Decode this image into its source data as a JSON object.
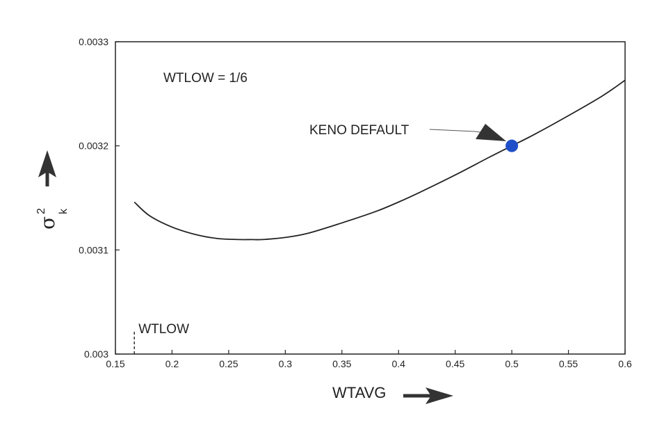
{
  "chart_data": {
    "type": "line",
    "xlabel": "WTAVG",
    "ylabel": {
      "symbol": "σ",
      "superscript": "2",
      "subscript": "k"
    },
    "xlim": [
      0.15,
      0.6
    ],
    "ylim": [
      0.003,
      0.0033
    ],
    "x_ticks": [
      0.15,
      0.2,
      0.25,
      0.3,
      0.35,
      0.4,
      0.45,
      0.5,
      0.55,
      0.6
    ],
    "x_tick_labels": [
      "0.15",
      "0.2",
      "0.25",
      "0.3",
      "0.35",
      "0.4",
      "0.45",
      "0.5",
      "0.55",
      "0.6"
    ],
    "y_ticks": [
      0.003,
      0.0031,
      0.0032,
      0.0033
    ],
    "y_tick_labels": [
      "0.003",
      "0.0031",
      "0.0032",
      "0.0033"
    ],
    "grid": false,
    "series": [
      {
        "x": [
          0.1667,
          0.18,
          0.2,
          0.22,
          0.24,
          0.26,
          0.27,
          0.28,
          0.3,
          0.32,
          0.35,
          0.38,
          0.4,
          0.42,
          0.45,
          0.48,
          0.5,
          0.52,
          0.55,
          0.58,
          0.6
        ],
        "y": [
          0.003146,
          0.003133,
          0.003122,
          0.003115,
          0.003111,
          0.00311,
          0.00311,
          0.00311,
          0.003112,
          0.003116,
          0.003126,
          0.003137,
          0.003146,
          0.003156,
          0.003172,
          0.003189,
          0.0032,
          0.003211,
          0.003229,
          0.003248,
          0.003263
        ],
        "color": "#222222"
      }
    ],
    "annotations": {
      "param_text": "WTLOW = 1/6",
      "default_label": "KENO DEFAULT",
      "default_point": {
        "x": 0.5,
        "y": 0.0032,
        "color": "#1f4fc8"
      },
      "wtlow_label": "WTLOW",
      "wtlow_x": 0.1667
    }
  }
}
